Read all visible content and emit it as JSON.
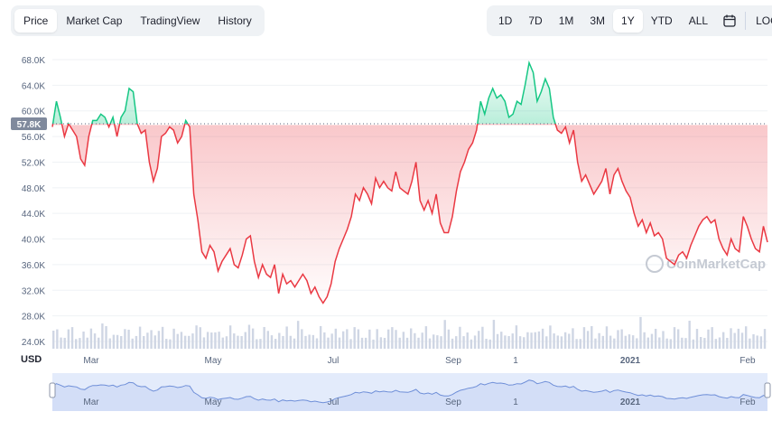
{
  "tabs": {
    "price": "Price",
    "market_cap": "Market Cap",
    "trading_view": "TradingView",
    "history": "History",
    "active": "Price"
  },
  "ranges": {
    "d1": "1D",
    "d7": "7D",
    "m1": "1M",
    "m3": "3M",
    "y1": "1Y",
    "ytd": "YTD",
    "all": "ALL",
    "log": "LOG",
    "active": "1Y"
  },
  "watermark": "CoinMarketCap",
  "colors": {
    "up": "#16c784",
    "down": "#ea3943",
    "volume": "#cfd6e4",
    "navigator_line": "#6f8fd8",
    "navigator_fill": "#e3ebfb"
  },
  "chart_data": {
    "type": "area",
    "currency_label": "USD",
    "reference_price": 57800,
    "current_price_label": "57.8K",
    "y_ticks": [
      "24.0K",
      "28.0K",
      "32.0K",
      "36.0K",
      "40.0K",
      "44.0K",
      "48.0K",
      "52.0K",
      "56.0K",
      "60.0K",
      "64.0K",
      "68.0K"
    ],
    "ylim": [
      24000,
      68000
    ],
    "x_ticks": [
      "Mar",
      "May",
      "Jul",
      "Sep",
      "1",
      "2021",
      "Feb"
    ],
    "navigator_ticks": [
      "Mar",
      "May",
      "Jul",
      "Sep",
      "1",
      "2021",
      "Feb"
    ],
    "grid": true,
    "series": [
      {
        "values": [
          57500,
          61500,
          59000,
          56000,
          58000,
          57000,
          56000,
          52500,
          51500,
          56000,
          58500,
          58500,
          59500,
          59000,
          57500,
          59000,
          56000,
          59000,
          60000,
          63500,
          63000,
          58000,
          56500,
          57000,
          52000,
          49000,
          51000,
          56000,
          56500,
          57500,
          57000,
          55000,
          56000,
          58500,
          57500,
          47000,
          43000,
          38000,
          37000,
          39000,
          38000,
          35000,
          36500,
          37500,
          38500,
          36000,
          35500,
          37500,
          40000,
          40500,
          36500,
          34000,
          36000,
          34500,
          34000,
          36000,
          31500,
          34500,
          33000,
          33500,
          32500,
          33500,
          34500,
          33500,
          31500,
          32500,
          31000,
          30000,
          31000,
          33000,
          36500,
          38500,
          40000,
          41500,
          43500,
          47000,
          46000,
          48000,
          47000,
          45500,
          49500,
          48000,
          49000,
          48000,
          47500,
          50500,
          48000,
          47500,
          47000,
          49000,
          52000,
          46000,
          44500,
          46000,
          44000,
          47000,
          42500,
          41000,
          41000,
          43500,
          47500,
          50500,
          52000,
          54000,
          55000,
          57000,
          61500,
          59500,
          62000,
          63500,
          62000,
          62500,
          61500,
          59000,
          59500,
          61500,
          61000,
          64000,
          67500,
          66000,
          61500,
          63000,
          65000,
          63500,
          59000,
          57000,
          56500,
          57500,
          55000,
          57000,
          52000,
          49000,
          50000,
          48500,
          47000,
          48000,
          49000,
          51000,
          47000,
          50000,
          51000,
          49000,
          47500,
          46500,
          44000,
          42000,
          43000,
          41000,
          42500,
          40500,
          41000,
          40000,
          37000,
          36500,
          36000,
          37500,
          38000,
          37000,
          39000,
          40500,
          42000,
          43000,
          43500,
          42500,
          43000,
          40000,
          38500,
          37500,
          40000,
          38500,
          38000,
          43500,
          42000,
          40000,
          38500,
          38000,
          42000,
          39500
        ]
      }
    ]
  }
}
